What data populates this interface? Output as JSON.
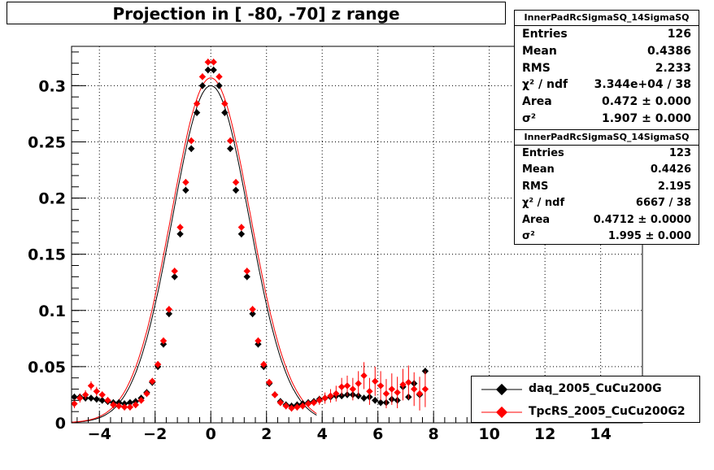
{
  "title": "Projection in [ -80, -70] z range",
  "stats": [
    {
      "name": "InnerPadRcSigmaSQ_14SigmaSQ",
      "rows": [
        {
          "key": "Entries",
          "value": "126"
        },
        {
          "key": "Mean",
          "value": "0.4386"
        },
        {
          "key": "RMS",
          "value": "2.233"
        },
        {
          "key": "χ² / ndf",
          "value": "3.344e+04 / 38"
        },
        {
          "key": "Area",
          "value": "0.472 ± 0.000"
        },
        {
          "key": "σ²",
          "value": "1.907 ± 0.000"
        }
      ]
    },
    {
      "name": "InnerPadRcSigmaSQ_14SigmaSQ",
      "rows": [
        {
          "key": "Entries",
          "value": "123"
        },
        {
          "key": "Mean",
          "value": "0.4426"
        },
        {
          "key": "RMS",
          "value": "2.195"
        },
        {
          "key": "χ² / ndf",
          "value": "6667 / 38"
        },
        {
          "key": "Area",
          "value": "0.4712 ± 0.0000"
        },
        {
          "key": "σ²",
          "value": "1.995 ± 0.000"
        }
      ]
    }
  ],
  "legend": [
    {
      "label": "daq_2005_CuCu200G",
      "color": "#000000"
    },
    {
      "label": "TpcRS_2005_CuCu200G2",
      "color": "#ff0000"
    }
  ],
  "chart_data": {
    "type": "scatter",
    "title": "Projection in [ -80, -70] z range",
    "xlim": [
      -5,
      15.5
    ],
    "ylim": [
      0,
      0.335
    ],
    "grid": true,
    "legend_position": "bottom-right",
    "x_ticks": [
      -4,
      -2,
      0,
      2,
      4,
      6,
      8,
      10,
      12,
      14
    ],
    "x_tick_labels": [
      "−4",
      "−2",
      "0",
      "2",
      "4",
      "6",
      "8",
      "10",
      "12",
      "14"
    ],
    "y_ticks": [
      0,
      0.05,
      0.1,
      0.15,
      0.2,
      0.25,
      0.3
    ],
    "y_tick_labels": [
      "0",
      "0.05",
      "0.1",
      "0.15",
      "0.2",
      "0.25",
      "0.3"
    ],
    "series": [
      {
        "name": "daq_2005_CuCu200G",
        "color": "#000000",
        "gauss": {
          "amplitude": 0.3,
          "sigma": 1.381
        },
        "x": [
          -4.9,
          -4.7,
          -4.5,
          -4.3,
          -4.1,
          -3.9,
          -3.7,
          -3.5,
          -3.3,
          -3.1,
          -2.9,
          -2.7,
          -2.5,
          -2.3,
          -2.1,
          -1.9,
          -1.7,
          -1.5,
          -1.3,
          -1.1,
          -0.9,
          -0.7,
          -0.5,
          -0.3,
          -0.1,
          0.1,
          0.3,
          0.5,
          0.7,
          0.9,
          1.1,
          1.3,
          1.5,
          1.7,
          1.9,
          2.1,
          2.3,
          2.5,
          2.7,
          2.9,
          3.1,
          3.3,
          3.5,
          3.7,
          3.9,
          4.1,
          4.3,
          4.5,
          4.7,
          4.9,
          5.1,
          5.3,
          5.5,
          5.7,
          5.9,
          6.1,
          6.3,
          6.5,
          6.7,
          6.9,
          7.1,
          7.3,
          7.5,
          7.7
        ],
        "y": [
          0.023,
          0.023,
          0.022,
          0.022,
          0.021,
          0.02,
          0.019,
          0.018,
          0.018,
          0.017,
          0.018,
          0.019,
          0.022,
          0.027,
          0.036,
          0.05,
          0.07,
          0.097,
          0.13,
          0.168,
          0.207,
          0.244,
          0.276,
          0.3,
          0.314,
          0.314,
          0.3,
          0.276,
          0.244,
          0.207,
          0.168,
          0.13,
          0.097,
          0.07,
          0.05,
          0.035,
          0.025,
          0.019,
          0.016,
          0.015,
          0.016,
          0.017,
          0.018,
          0.019,
          0.021,
          0.022,
          0.023,
          0.024,
          0.024,
          0.025,
          0.025,
          0.024,
          0.022,
          0.023,
          0.02,
          0.018,
          0.018,
          0.021,
          0.02,
          0.032,
          0.023,
          0.035,
          0.025,
          0.046
        ]
      },
      {
        "name": "TpcRS_2005_CuCu200G2",
        "color": "#ff0000",
        "gauss": {
          "amplitude": 0.307,
          "sigma": 1.413
        },
        "x": [
          -4.9,
          -4.7,
          -4.5,
          -4.3,
          -4.1,
          -3.9,
          -3.7,
          -3.5,
          -3.3,
          -3.1,
          -2.9,
          -2.7,
          -2.5,
          -2.3,
          -2.1,
          -1.9,
          -1.7,
          -1.5,
          -1.3,
          -1.1,
          -0.9,
          -0.7,
          -0.5,
          -0.3,
          -0.1,
          0.1,
          0.3,
          0.5,
          0.7,
          0.9,
          1.1,
          1.3,
          1.5,
          1.7,
          1.9,
          2.1,
          2.3,
          2.5,
          2.7,
          2.9,
          3.1,
          3.3,
          3.5,
          3.7,
          3.9,
          4.1,
          4.3,
          4.5,
          4.7,
          4.9,
          5.1,
          5.3,
          5.5,
          5.7,
          5.9,
          6.1,
          6.3,
          6.5,
          6.7,
          6.9,
          7.1,
          7.3,
          7.5,
          7.7
        ],
        "y": [
          0.017,
          0.022,
          0.025,
          0.033,
          0.028,
          0.025,
          0.02,
          0.016,
          0.015,
          0.014,
          0.014,
          0.016,
          0.02,
          0.026,
          0.037,
          0.052,
          0.073,
          0.101,
          0.135,
          0.174,
          0.214,
          0.251,
          0.284,
          0.308,
          0.321,
          0.321,
          0.308,
          0.284,
          0.251,
          0.214,
          0.174,
          0.135,
          0.101,
          0.073,
          0.052,
          0.036,
          0.025,
          0.018,
          0.015,
          0.013,
          0.014,
          0.015,
          0.017,
          0.018,
          0.02,
          0.022,
          0.024,
          0.026,
          0.032,
          0.033,
          0.03,
          0.035,
          0.042,
          0.028,
          0.037,
          0.033,
          0.026,
          0.03,
          0.027,
          0.034,
          0.036,
          0.03,
          0.026,
          0.03
        ],
        "err": [
          0.004,
          0.004,
          0.004,
          0.004,
          0.004,
          0.003,
          0.003,
          0.003,
          0.003,
          0.003,
          0.003,
          0.003,
          0.003,
          0.003,
          0.003,
          0.003,
          0.003,
          0.003,
          0.003,
          0.003,
          0.003,
          0.003,
          0.003,
          0.003,
          0.003,
          0.003,
          0.003,
          0.003,
          0.003,
          0.003,
          0.003,
          0.003,
          0.003,
          0.003,
          0.003,
          0.003,
          0.003,
          0.003,
          0.003,
          0.003,
          0.003,
          0.003,
          0.003,
          0.003,
          0.004,
          0.005,
          0.006,
          0.007,
          0.008,
          0.009,
          0.01,
          0.011,
          0.012,
          0.012,
          0.013,
          0.013,
          0.013,
          0.014,
          0.014,
          0.014,
          0.015,
          0.015,
          0.015,
          0.016
        ]
      }
    ]
  }
}
